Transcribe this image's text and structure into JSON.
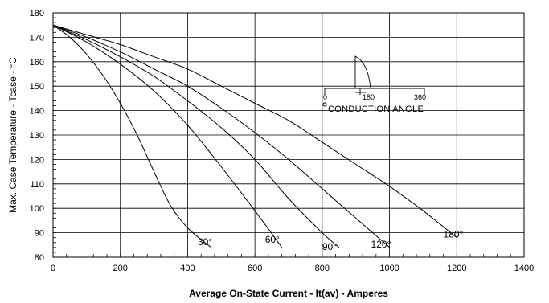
{
  "chart_data": {
    "type": "line",
    "xlabel": "Average On-State Current - It(av) - Amperes",
    "ylabel": "Max. Case Temperature - Tcase - °C",
    "xlim": [
      0,
      1400
    ],
    "ylim": [
      80,
      180
    ],
    "x_ticks": [
      0,
      200,
      400,
      600,
      800,
      1000,
      1200,
      1400
    ],
    "y_ticks": [
      80,
      90,
      100,
      110,
      120,
      130,
      140,
      150,
      160,
      170,
      180
    ],
    "grid": true,
    "series": [
      {
        "name": "30°",
        "label_at": [
          430,
          85
        ],
        "points": [
          [
            0,
            175
          ],
          [
            50,
            170
          ],
          [
            100,
            163
          ],
          [
            150,
            154
          ],
          [
            200,
            143
          ],
          [
            250,
            130
          ],
          [
            300,
            115
          ],
          [
            350,
            101
          ],
          [
            400,
            92
          ],
          [
            470,
            84
          ]
        ]
      },
      {
        "name": "60°",
        "label_at": [
          630,
          86
        ],
        "points": [
          [
            0,
            175
          ],
          [
            100,
            168
          ],
          [
            200,
            159
          ],
          [
            300,
            148
          ],
          [
            400,
            134
          ],
          [
            500,
            117
          ],
          [
            600,
            99
          ],
          [
            680,
            84
          ]
        ]
      },
      {
        "name": "90°",
        "label_at": [
          800,
          83
        ],
        "points": [
          [
            0,
            175
          ],
          [
            100,
            169
          ],
          [
            200,
            162
          ],
          [
            300,
            154
          ],
          [
            400,
            144
          ],
          [
            500,
            133
          ],
          [
            600,
            120
          ],
          [
            700,
            104
          ],
          [
            800,
            90
          ],
          [
            850,
            84
          ]
        ]
      },
      {
        "name": "120°",
        "label_at": [
          945,
          84
        ],
        "points": [
          [
            0,
            175
          ],
          [
            100,
            170
          ],
          [
            200,
            164
          ],
          [
            300,
            157
          ],
          [
            400,
            150
          ],
          [
            500,
            141
          ],
          [
            600,
            131
          ],
          [
            700,
            120
          ],
          [
            800,
            108
          ],
          [
            900,
            96
          ],
          [
            1000,
            84
          ]
        ]
      },
      {
        "name": "180°",
        "label_at": [
          1160,
          88
        ],
        "points": [
          [
            0,
            175
          ],
          [
            100,
            171
          ],
          [
            200,
            167
          ],
          [
            300,
            162
          ],
          [
            400,
            157
          ],
          [
            500,
            150
          ],
          [
            600,
            143
          ],
          [
            700,
            136
          ],
          [
            800,
            127
          ],
          [
            900,
            118
          ],
          [
            1000,
            109
          ],
          [
            1100,
            99
          ],
          [
            1200,
            88
          ]
        ]
      }
    ],
    "inset": {
      "tick_labels": [
        "0",
        "180",
        "360"
      ],
      "label": "CONDUCTION ANGLE"
    }
  }
}
